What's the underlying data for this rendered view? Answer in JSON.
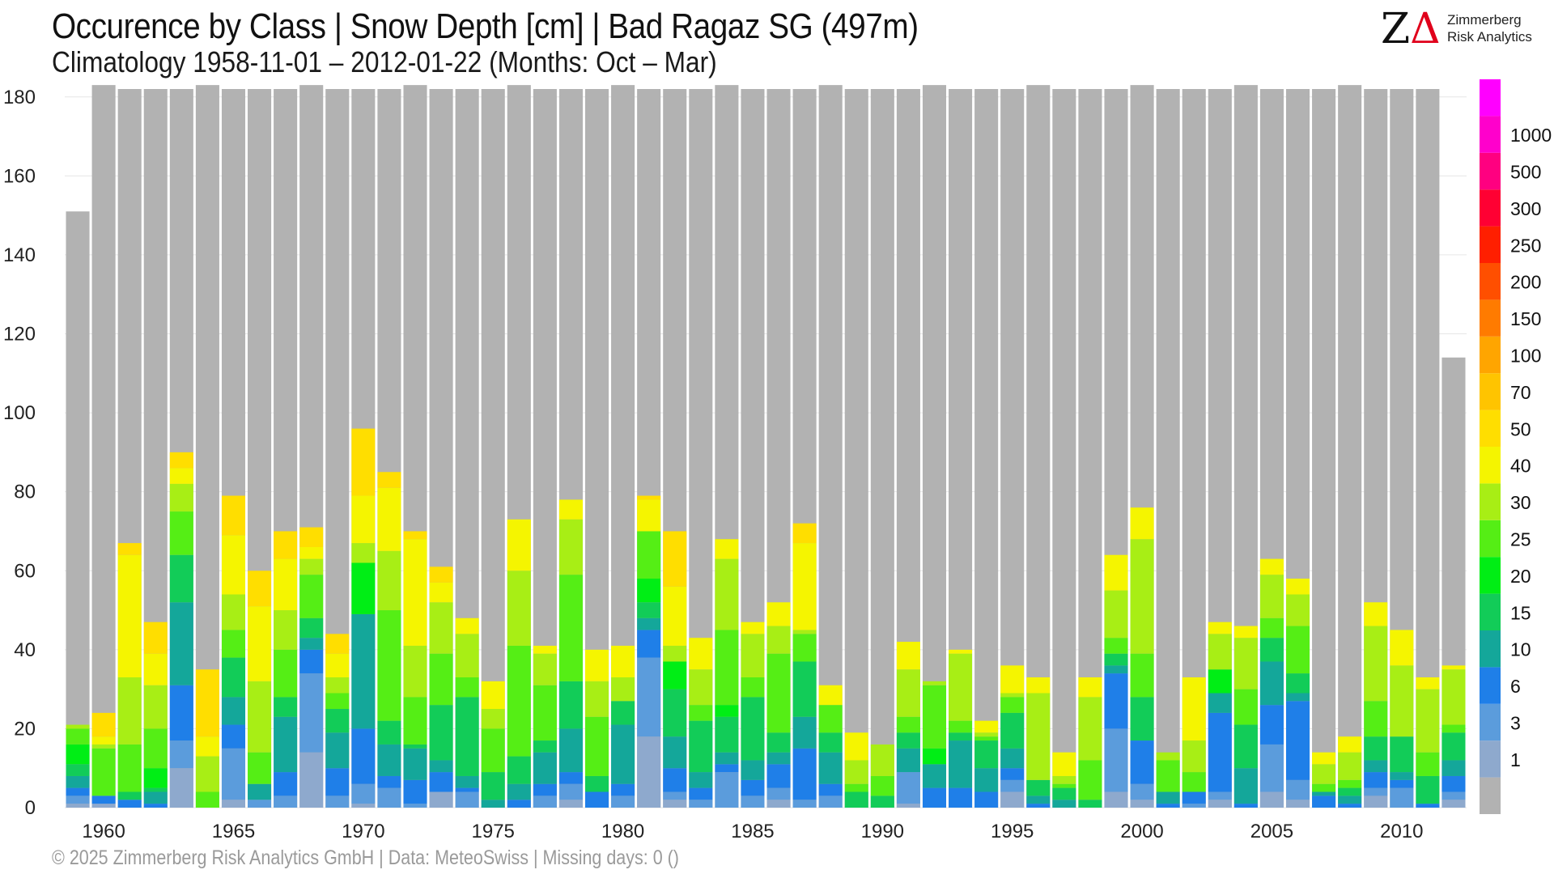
{
  "header": {
    "title": "Occurence by Class | Snow Depth [cm] | Bad Ragaz  SG (497m)",
    "subtitle": "Climatology 1958-11-01 – 2012-01-22 (Months: Oct – Mar)"
  },
  "logo": {
    "mark_z": "Z",
    "mark_delta": "Δ",
    "line1": "Zimmerberg",
    "line2": "Risk Analytics"
  },
  "footer": "©  2025 Zimmerberg Risk Analytics GmbH | Data: MeteoSwiss | Missing days: 0 ()",
  "chart_data": {
    "type": "bar",
    "stacked": true,
    "ylim": [
      0,
      182
    ],
    "yticks": [
      0,
      20,
      40,
      60,
      80,
      100,
      120,
      140,
      160,
      180
    ],
    "xticks": [
      1960,
      1965,
      1970,
      1975,
      1980,
      1985,
      1990,
      1995,
      2000,
      2005,
      2010
    ],
    "grid": true,
    "legend": "colorbar-right",
    "classes": [
      {
        "label": "",
        "color": "#b2b2b2"
      },
      {
        "label": "1",
        "color": "#8ea9cd"
      },
      {
        "label": "3",
        "color": "#5b9cdc"
      },
      {
        "label": "6",
        "color": "#1f7fe8"
      },
      {
        "label": "10",
        "color": "#14a79a"
      },
      {
        "label": "15",
        "color": "#12cc58"
      },
      {
        "label": "20",
        "color": "#00ee15"
      },
      {
        "label": "25",
        "color": "#55ee15"
      },
      {
        "label": "30",
        "color": "#a8ee15"
      },
      {
        "label": "40",
        "color": "#f5f500"
      },
      {
        "label": "50",
        "color": "#ffde00"
      },
      {
        "label": "70",
        "color": "#ffc400"
      },
      {
        "label": "100",
        "color": "#ffa500"
      },
      {
        "label": "150",
        "color": "#ff7b00"
      },
      {
        "label": "200",
        "color": "#ff4f00"
      },
      {
        "label": "250",
        "color": "#ff1f00"
      },
      {
        "label": "300",
        "color": "#ff0033"
      },
      {
        "label": "500",
        "color": "#ff0080"
      },
      {
        "label": "1000",
        "color": "#ff00cc"
      },
      {
        "label": "",
        "color": "#ff00ff"
      }
    ],
    "years": [
      1959,
      1960,
      1961,
      1962,
      1963,
      1964,
      1965,
      1966,
      1967,
      1968,
      1969,
      1970,
      1971,
      1972,
      1973,
      1974,
      1975,
      1976,
      1977,
      1978,
      1979,
      1980,
      1981,
      1982,
      1983,
      1984,
      1985,
      1986,
      1987,
      1988,
      1989,
      1990,
      1991,
      1992,
      1993,
      1994,
      1995,
      1996,
      1997,
      1998,
      1999,
      2000,
      2001,
      2002,
      2003,
      2004,
      2005,
      2006,
      2007,
      2008,
      2009,
      2010,
      2011,
      2012
    ],
    "totals": [
      151,
      183,
      182,
      182,
      182,
      183,
      182,
      182,
      182,
      183,
      182,
      182,
      182,
      183,
      182,
      182,
      182,
      183,
      182,
      182,
      182,
      183,
      182,
      182,
      182,
      183,
      182,
      182,
      182,
      183,
      182,
      182,
      182,
      183,
      182,
      182,
      182,
      183,
      182,
      182,
      182,
      183,
      182,
      182,
      182,
      183,
      182,
      182,
      182,
      183,
      182,
      182,
      182,
      114
    ],
    "segments": [
      [
        1,
        2,
        2,
        3,
        3,
        5,
        4,
        1
      ],
      [
        1,
        0,
        2,
        0,
        0,
        0,
        12,
        1,
        2,
        6
      ],
      [
        0,
        0,
        2,
        0,
        2,
        0,
        12,
        17,
        31,
        3
      ],
      [
        0,
        0,
        1,
        3,
        1,
        5,
        10,
        11,
        8,
        8
      ],
      [
        10,
        7,
        14,
        21,
        12,
        0,
        11,
        7,
        4,
        4
      ],
      [
        0,
        0,
        0,
        0,
        0,
        0,
        4,
        9,
        5,
        17
      ],
      [
        2,
        13,
        6,
        7,
        10,
        0,
        7,
        9,
        15,
        10
      ],
      [
        0,
        2,
        0,
        4,
        0,
        0,
        8,
        18,
        19,
        9
      ],
      [
        0,
        3,
        6,
        14,
        5,
        0,
        12,
        10,
        13,
        7
      ],
      [
        14,
        20,
        6,
        3,
        5,
        0,
        11,
        4,
        3,
        5
      ],
      [
        0,
        3,
        7,
        9,
        6,
        0,
        4,
        4,
        6,
        5
      ],
      [
        1,
        5,
        14,
        29,
        0,
        13,
        0,
        5,
        12,
        17
      ],
      [
        0,
        5,
        3,
        8,
        6,
        0,
        28,
        15,
        16,
        4
      ],
      [
        0,
        1,
        6,
        8,
        1,
        0,
        12,
        13,
        27,
        2
      ],
      [
        4,
        0,
        5,
        3,
        14,
        0,
        13,
        13,
        5,
        4
      ],
      [
        0,
        4,
        1,
        3,
        20,
        0,
        5,
        11,
        4
      ],
      [
        0,
        0,
        0,
        2,
        7,
        0,
        11,
        5,
        7
      ],
      [
        0,
        0,
        2,
        4,
        7,
        0,
        28,
        19,
        13
      ],
      [
        0,
        3,
        3,
        8,
        3,
        0,
        14,
        8,
        2
      ],
      [
        2,
        4,
        3,
        11,
        12,
        0,
        27,
        14,
        5
      ],
      [
        0,
        0,
        4,
        0,
        4,
        0,
        15,
        9,
        8
      ],
      [
        0,
        3,
        3,
        15,
        6,
        0,
        0,
        6,
        8
      ],
      [
        18,
        20,
        7,
        3,
        4,
        6,
        12,
        0,
        8,
        1
      ],
      [
        2,
        2,
        6,
        8,
        12,
        7,
        0,
        4,
        15,
        14
      ],
      [
        0,
        2,
        3,
        4,
        13,
        0,
        4,
        9,
        8
      ],
      [
        0,
        9,
        2,
        3,
        9,
        3,
        19,
        18,
        5
      ],
      [
        0,
        3,
        4,
        5,
        16,
        0,
        5,
        11,
        3
      ],
      [
        2,
        3,
        6,
        3,
        5,
        0,
        20,
        7,
        6
      ],
      [
        0,
        2,
        13,
        8,
        14,
        0,
        7,
        1,
        22,
        5
      ],
      [
        0,
        3,
        3,
        8,
        5,
        0,
        7,
        0,
        5
      ],
      [
        0,
        0,
        0,
        0,
        4,
        0,
        2,
        6,
        7
      ],
      [
        0,
        0,
        0,
        0,
        3,
        0,
        5,
        8
      ],
      [
        1,
        8,
        0,
        6,
        4,
        0,
        4,
        12,
        7
      ],
      [
        0,
        0,
        5,
        6,
        0,
        4,
        16,
        1
      ],
      [
        0,
        0,
        5,
        12,
        2,
        0,
        3,
        17,
        1
      ],
      [
        0,
        0,
        4,
        6,
        7,
        0,
        1,
        1,
        3
      ],
      [
        4,
        3,
        3,
        5,
        9,
        0,
        4,
        1,
        7
      ],
      [
        0,
        0,
        1,
        2,
        4,
        0,
        0,
        22,
        4
      ],
      [
        0,
        0,
        0,
        2,
        3,
        0,
        1,
        2,
        6
      ],
      [
        0,
        0,
        0,
        0,
        2,
        0,
        10,
        16,
        5
      ],
      [
        4,
        16,
        14,
        2,
        3,
        0,
        4,
        12,
        9
      ],
      [
        2,
        4,
        11,
        0,
        11,
        0,
        11,
        29,
        8
      ],
      [
        0,
        0,
        1,
        3,
        0,
        0,
        8,
        2
      ],
      [
        0,
        1,
        3,
        0,
        0,
        0,
        5,
        8,
        16
      ],
      [
        2,
        2,
        20,
        5,
        0,
        6,
        0,
        9,
        3
      ],
      [
        0,
        0,
        1,
        9,
        11,
        0,
        9,
        13,
        3
      ],
      [
        4,
        12,
        10,
        11,
        6,
        0,
        5,
        11,
        4
      ],
      [
        2,
        5,
        20,
        2,
        5,
        0,
        12,
        8,
        4
      ],
      [
        0,
        0,
        3,
        1,
        0,
        0,
        2,
        5,
        3
      ],
      [
        0,
        0,
        1,
        2,
        2,
        0,
        2,
        7,
        4
      ],
      [
        3,
        2,
        4,
        3,
        6,
        0,
        9,
        19,
        6
      ],
      [
        0,
        5,
        2,
        2,
        9,
        0,
        0,
        18,
        9
      ],
      [
        0,
        0,
        1,
        0,
        7,
        0,
        6,
        16,
        3
      ],
      [
        2,
        2,
        4,
        4,
        7,
        0,
        2,
        14,
        1
      ]
    ]
  }
}
